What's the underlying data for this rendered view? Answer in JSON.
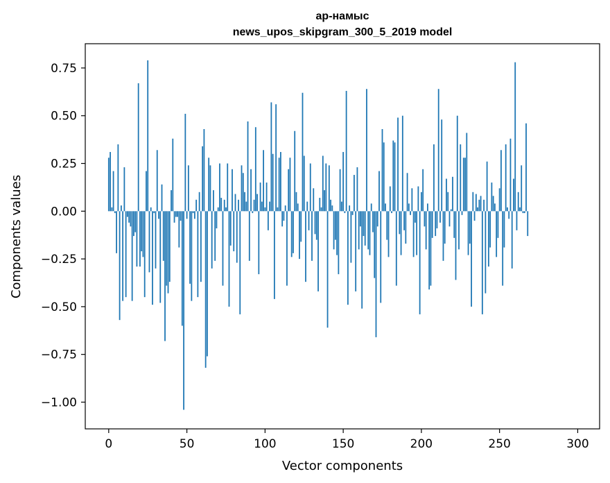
{
  "chart_data": {
    "type": "bar",
    "title": "ар-намыс",
    "subtitle": "news_upos_skipgram_300_5_2019 model",
    "xlabel": "Vector components",
    "ylabel": "Components values",
    "xlim": [
      -15,
      314
    ],
    "ylim": [
      -1.14,
      0.877
    ],
    "xticks": [
      0,
      50,
      100,
      150,
      200,
      250,
      300
    ],
    "yticks": [
      -1.0,
      -0.75,
      -0.5,
      -0.25,
      0.0,
      0.25,
      0.5,
      0.75
    ],
    "xtick_labels": [
      "0",
      "50",
      "100",
      "150",
      "200",
      "250",
      "300"
    ],
    "ytick_labels": [
      "−1.00",
      "−0.75",
      "−0.50",
      "−0.25",
      "0.00",
      "0.25",
      "0.50",
      "0.75"
    ],
    "bar_color": "#1f77b4",
    "grid": false,
    "series": [
      {
        "values": [
          0.28,
          0.31,
          0.02,
          0.21,
          -0.01,
          -0.22,
          0.35,
          -0.57,
          0.03,
          -0.47,
          0.23,
          -0.45,
          -0.03,
          -0.06,
          -0.08,
          -0.47,
          -0.13,
          -0.11,
          -0.29,
          0.67,
          -0.29,
          -0.21,
          -0.24,
          -0.45,
          0.21,
          0.79,
          -0.32,
          0.02,
          -0.49,
          -0.01,
          -0.3,
          0.32,
          -0.04,
          -0.48,
          0.14,
          -0.26,
          -0.68,
          -0.39,
          -0.43,
          -0.37,
          0.11,
          0.38,
          -0.06,
          -0.03,
          -0.03,
          -0.19,
          -0.05,
          -0.6,
          -1.04,
          0.51,
          -0.04,
          0.24,
          -0.38,
          -0.47,
          -0.01,
          -0.04,
          0.06,
          -0.45,
          0.1,
          -0.37,
          0.34,
          0.43,
          -0.82,
          -0.76,
          0.28,
          0.24,
          -0.3,
          0.11,
          -0.26,
          -0.09,
          0.02,
          0.25,
          0.07,
          -0.39,
          0.06,
          0.02,
          0.25,
          -0.5,
          -0.18,
          0.22,
          -0.21,
          0.09,
          -0.27,
          0.06,
          -0.54,
          0.24,
          0.2,
          0.1,
          0.05,
          0.47,
          -0.26,
          0.22,
          -0.01,
          0.06,
          0.44,
          0.09,
          -0.33,
          0.15,
          0.05,
          0.32,
          0.02,
          0.15,
          -0.1,
          0.05,
          0.57,
          0.3,
          -0.46,
          0.56,
          0.02,
          0.28,
          0.31,
          -0.08,
          -0.05,
          0.03,
          -0.39,
          0.22,
          0.28,
          -0.24,
          -0.22,
          0.42,
          0.1,
          0.04,
          -0.25,
          -0.16,
          0.62,
          0.29,
          -0.37,
          0.05,
          -0.1,
          0.25,
          -0.26,
          0.12,
          -0.12,
          -0.15,
          -0.42,
          0.07,
          0.02,
          0.29,
          0.11,
          0.25,
          -0.61,
          0.24,
          0.06,
          0.03,
          -0.2,
          -0.15,
          -0.23,
          -0.33,
          0.22,
          0.05,
          0.31,
          -0.01,
          0.63,
          -0.49,
          0.03,
          -0.27,
          -0.02,
          0.19,
          -0.42,
          0.23,
          -0.2,
          -0.08,
          -0.51,
          -0.13,
          -0.18,
          0.64,
          -0.2,
          -0.23,
          0.04,
          -0.11,
          -0.35,
          -0.66,
          -0.08,
          0.21,
          -0.48,
          0.43,
          0.36,
          0.04,
          -0.15,
          -0.24,
          0.13,
          -0.01,
          0.37,
          0.36,
          -0.39,
          0.49,
          -0.12,
          -0.23,
          0.5,
          -0.1,
          -0.17,
          0.2,
          0.04,
          -0.02,
          0.12,
          -0.24,
          -0.06,
          -0.23,
          0.13,
          -0.54,
          0.1,
          0.22,
          -0.08,
          -0.2,
          0.04,
          -0.41,
          -0.39,
          -0.14,
          0.35,
          -0.13,
          -0.09,
          0.64,
          -0.06,
          0.48,
          -0.26,
          -0.17,
          0.17,
          0.1,
          -0.08,
          0.01,
          0.18,
          -0.14,
          -0.36,
          0.5,
          -0.2,
          0.35,
          -0.02,
          0.28,
          0.28,
          0.41,
          -0.23,
          -0.17,
          -0.5,
          0.1,
          -0.05,
          0.09,
          0.02,
          0.06,
          0.08,
          -0.54,
          0.06,
          -0.43,
          0.26,
          -0.29,
          -0.19,
          0.15,
          0.08,
          0.04,
          -0.24,
          -0.14,
          0.12,
          0.32,
          -0.39,
          -0.19,
          0.35,
          0.02,
          -0.04,
          0.38,
          -0.3,
          0.17,
          0.78,
          -0.1,
          0.1,
          0.02,
          0.24,
          -0.01,
          -0.01,
          0.46,
          -0.13
        ]
      }
    ]
  }
}
